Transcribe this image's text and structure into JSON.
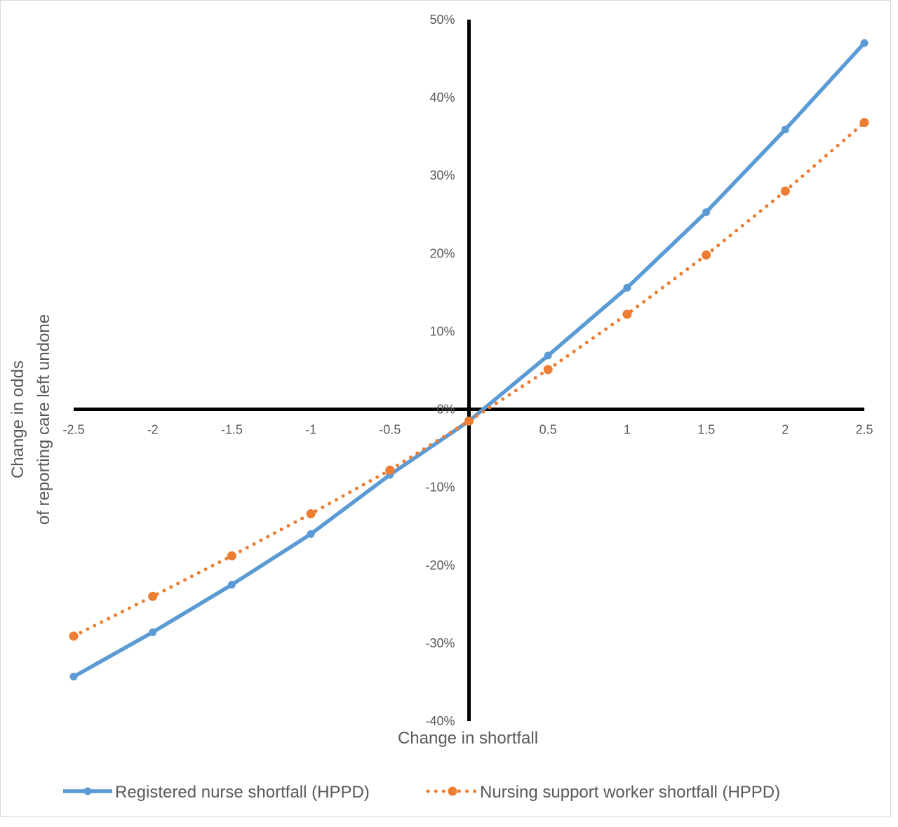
{
  "chart_data": {
    "type": "line",
    "title": "",
    "xlabel": "Change in shortfall",
    "ylabel_lines": [
      "Change in odds",
      "of reporting care left undone"
    ],
    "x": [
      -2.5,
      -2,
      -1.5,
      -1,
      -0.5,
      0,
      0.5,
      1,
      1.5,
      2,
      2.5
    ],
    "xticks": [
      "-2.5",
      "-2",
      "-1.5",
      "-1",
      "-0.5",
      "0.5",
      "1",
      "1.5",
      "2",
      "2.5"
    ],
    "xtick_values": [
      -2.5,
      -2,
      -1.5,
      -1,
      -0.5,
      0.5,
      1,
      1.5,
      2,
      2.5
    ],
    "yticks": [
      "50%",
      "40%",
      "30%",
      "20%",
      "10%",
      "0%",
      "-10%",
      "-20%",
      "-30%",
      "-40%"
    ],
    "ytick_values": [
      50,
      40,
      30,
      20,
      10,
      0,
      -10,
      -20,
      -30,
      -40
    ],
    "xlim": [
      -2.5,
      2.5
    ],
    "ylim": [
      -40,
      50
    ],
    "grid": false,
    "legend_position": "bottom",
    "series": [
      {
        "name": "Registered nurse shortfall (HPPD)",
        "style": "solid",
        "color": "#5b9bd5",
        "values": [
          -34.3,
          -28.6,
          -22.5,
          -16.0,
          -8.4,
          -1.5,
          6.9,
          15.6,
          25.3,
          35.9,
          47.0
        ]
      },
      {
        "name": "Nursing support worker shortfall (HPPD)",
        "style": "dotted",
        "color": "#ed7d31",
        "values": [
          -29.1,
          -24.0,
          -18.8,
          -13.4,
          -7.8,
          -1.5,
          5.1,
          12.2,
          19.8,
          28.0,
          36.8
        ]
      }
    ]
  }
}
